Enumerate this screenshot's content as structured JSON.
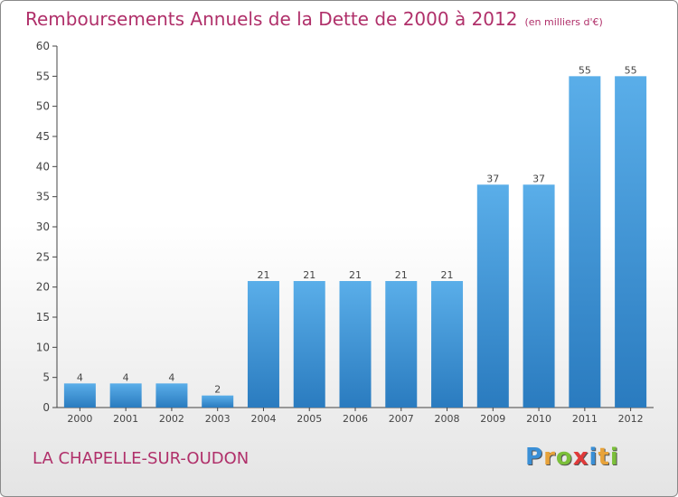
{
  "title": "Remboursements Annuels de la Dette de 2000 à 2012",
  "unit": "(en milliers d'€)",
  "commune": "LA CHAPELLE-SUR-OUDON",
  "logo": {
    "letters": [
      "P",
      "r",
      "o",
      "x",
      "i",
      "t",
      "i"
    ],
    "colors": [
      "#3a8fd6",
      "#e8a33a",
      "#7bbf3a",
      "#e03a3a",
      "#3a8fd6",
      "#e8a33a",
      "#7bbf3a"
    ]
  },
  "chart_data": {
    "type": "bar",
    "title": "Remboursements Annuels de la Dette de 2000 à 2012",
    "xlabel": "",
    "ylabel": "",
    "categories": [
      "2000",
      "2001",
      "2002",
      "2003",
      "2004",
      "2005",
      "2006",
      "2007",
      "2008",
      "2009",
      "2010",
      "2011",
      "2012"
    ],
    "values": [
      4,
      4,
      4,
      2,
      21,
      21,
      21,
      21,
      21,
      37,
      37,
      55,
      55
    ],
    "ylim": [
      0,
      60
    ],
    "yticks": [
      0,
      5,
      10,
      15,
      20,
      25,
      30,
      35,
      40,
      45,
      50,
      55,
      60
    ],
    "grid": false,
    "bar_color": "#3d95d9"
  }
}
